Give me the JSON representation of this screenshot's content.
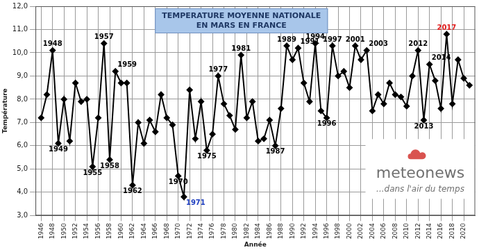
{
  "chart_data": {
    "type": "line",
    "title": [
      "TEMPERATURE MOYENNE NATIONALE",
      "EN MARS EN FRANCE"
    ],
    "x_label": "Année",
    "y_label": "Température",
    "x": [
      1946,
      1947,
      1948,
      1949,
      1950,
      1951,
      1952,
      1953,
      1954,
      1955,
      1956,
      1957,
      1958,
      1959,
      1960,
      1961,
      1962,
      1963,
      1964,
      1965,
      1966,
      1967,
      1968,
      1969,
      1970,
      1971,
      1972,
      1973,
      1974,
      1975,
      1976,
      1977,
      1978,
      1979,
      1980,
      1981,
      1982,
      1983,
      1984,
      1985,
      1986,
      1987,
      1988,
      1989,
      1990,
      1991,
      1992,
      1993,
      1994,
      1995,
      1996,
      1997,
      1998,
      1999,
      2000,
      2001,
      2002,
      2003,
      2004,
      2005,
      2006,
      2007,
      2008,
      2009,
      2010,
      2011,
      2012,
      2013,
      2014,
      2015,
      2016,
      2017,
      2018,
      2019,
      2020,
      2021
    ],
    "values": [
      7.2,
      8.2,
      10.1,
      6.1,
      8.0,
      6.2,
      8.7,
      7.9,
      8.0,
      5.1,
      7.2,
      10.4,
      5.4,
      9.2,
      8.7,
      8.7,
      4.3,
      7.0,
      6.1,
      7.1,
      6.6,
      8.2,
      7.2,
      6.9,
      4.7,
      3.8,
      8.4,
      6.3,
      7.9,
      5.8,
      6.5,
      9.0,
      7.8,
      7.3,
      6.7,
      9.9,
      7.2,
      7.9,
      6.2,
      6.3,
      7.1,
      6.0,
      7.6,
      10.3,
      9.7,
      10.2,
      8.7,
      7.9,
      10.4,
      7.5,
      7.2,
      10.3,
      9.0,
      9.2,
      8.5,
      10.3,
      9.7,
      10.1,
      7.5,
      8.2,
      7.8,
      8.7,
      8.2,
      8.1,
      7.7,
      9.0,
      10.1,
      7.1,
      9.5,
      8.8,
      7.6,
      10.8,
      7.8,
      9.7,
      8.9,
      8.6
    ],
    "color": "#000000",
    "marker": "diamond",
    "xlim": [
      1945,
      2022
    ],
    "xticks": [
      1946,
      1948,
      1950,
      1952,
      1954,
      1956,
      1958,
      1960,
      1962,
      1964,
      1966,
      1968,
      1970,
      1972,
      1974,
      1976,
      1978,
      1980,
      1982,
      1984,
      1986,
      1988,
      1990,
      1992,
      1994,
      1996,
      1998,
      2000,
      2002,
      2004,
      2006,
      2008,
      2010,
      2012,
      2014,
      2016,
      2018,
      2020
    ],
    "ylim": [
      3,
      12
    ],
    "yticks": [
      {
        "value": 3,
        "label": "3,0"
      },
      {
        "value": 4,
        "label": "4,0"
      },
      {
        "value": 5,
        "label": "5,0"
      },
      {
        "value": 6,
        "label": "6,0"
      },
      {
        "value": 7,
        "label": "7,0"
      },
      {
        "value": 8,
        "label": "8,0"
      },
      {
        "value": 9,
        "label": "9,0"
      },
      {
        "value": 10,
        "label": "10,0"
      },
      {
        "value": 11,
        "label": "11,0"
      },
      {
        "value": 12,
        "label": "12,0"
      }
    ],
    "grid": true,
    "annotations": [
      {
        "x": 1948,
        "text": "1948"
      },
      {
        "x": 1949,
        "text": "1949"
      },
      {
        "x": 1955,
        "text": "1955"
      },
      {
        "x": 1957,
        "text": "1957"
      },
      {
        "x": 1958,
        "text": "1958"
      },
      {
        "x": 1959,
        "text": "1959"
      },
      {
        "x": 1962,
        "text": "1962"
      },
      {
        "x": 1970,
        "text": "1970"
      },
      {
        "x": 1971,
        "text": "1971",
        "color": "#1f3fbf"
      },
      {
        "x": 1975,
        "text": "1975"
      },
      {
        "x": 1977,
        "text": "1977"
      },
      {
        "x": 1981,
        "text": "1981"
      },
      {
        "x": 1987,
        "text": "1987"
      },
      {
        "x": 1989,
        "text": "1989"
      },
      {
        "x": 1991,
        "text": "1991"
      },
      {
        "x": 1994,
        "text": "1994"
      },
      {
        "x": 1996,
        "text": "1996"
      },
      {
        "x": 1997,
        "text": "1997"
      },
      {
        "x": 2001,
        "text": "2001"
      },
      {
        "x": 2003,
        "text": "2003"
      },
      {
        "x": 2012,
        "text": "2012"
      },
      {
        "x": 2013,
        "text": "2013"
      },
      {
        "x": 2014,
        "text": "2014"
      },
      {
        "x": 2017,
        "text": "2017",
        "color": "#e02020"
      }
    ],
    "logo_text": [
      "meteonews",
      "...dans l'air du temps"
    ]
  }
}
